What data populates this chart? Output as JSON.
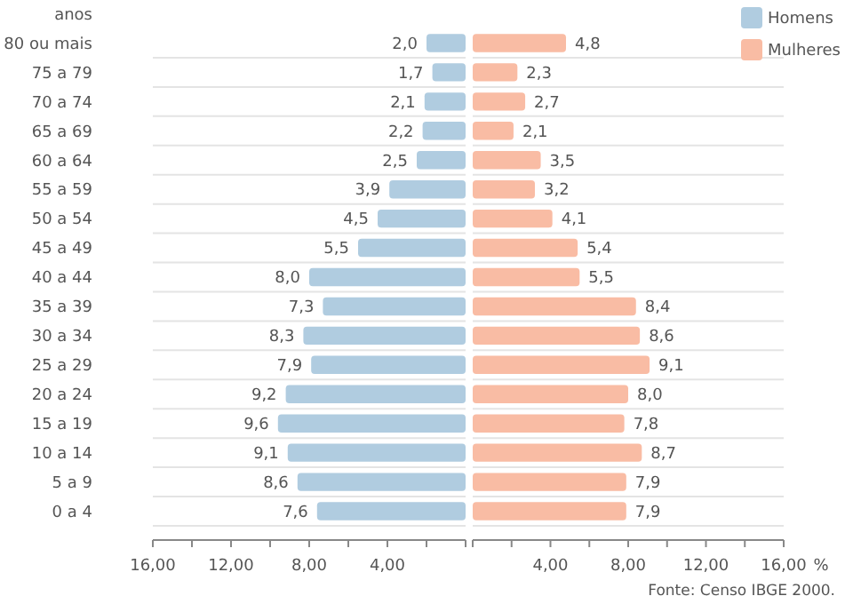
{
  "chart_data": [
    {
      "type": "bar",
      "orientation": "horizontal",
      "ylabel": "anos",
      "categories": [
        "80 ou mais",
        "75 a 79",
        "70 a 74",
        "65 a 69",
        "60 a 64",
        "55 a 59",
        "50 a 54",
        "45 a 49",
        "40 a 44",
        "35 a 39",
        "30 a 34",
        "25 a 29",
        "20 a 24",
        "15 a 19",
        "10 a 14",
        "5 a 9",
        "0 a 4"
      ],
      "series": [
        {
          "name": "Homens",
          "color": "#b0cce0",
          "values": [
            2.0,
            1.7,
            2.1,
            2.2,
            2.5,
            3.9,
            4.5,
            5.5,
            8.0,
            7.3,
            8.3,
            7.9,
            9.2,
            9.6,
            9.1,
            8.6,
            7.6
          ],
          "value_labels": [
            "2,0",
            "1,7",
            "2,1",
            "2,2",
            "2,5",
            "3,9",
            "4,5",
            "5,5",
            "8,0",
            "7,3",
            "8,3",
            "7,9",
            "9,2",
            "9,6",
            "9,1",
            "8,6",
            "7,6"
          ]
        }
      ],
      "xlim": [
        16,
        0
      ],
      "xticks": [
        {
          "value": 16,
          "label": "16,00"
        },
        {
          "value": 14,
          "label": null
        },
        {
          "value": 12,
          "label": "12,00"
        },
        {
          "value": 10,
          "label": null
        },
        {
          "value": 8,
          "label": "8,00"
        },
        {
          "value": 6,
          "label": null
        },
        {
          "value": 4,
          "label": "4,00"
        },
        {
          "value": 2,
          "label": null
        },
        {
          "value": 0,
          "label": null
        }
      ],
      "grid": "y",
      "legend": "top right"
    },
    {
      "type": "bar",
      "orientation": "horizontal",
      "xlabel": "%",
      "categories": [
        "80 ou mais",
        "75 a 79",
        "70 a 74",
        "65 a 69",
        "60 a 64",
        "55 a 59",
        "50 a 54",
        "45 a 49",
        "40 a 44",
        "35 a 39",
        "30 a 34",
        "25 a 29",
        "20 a 24",
        "15 a 19",
        "10 a 14",
        "5 a 9",
        "0 a 4"
      ],
      "series": [
        {
          "name": "Mulheres",
          "color": "#f9bca4",
          "values": [
            4.8,
            2.3,
            2.7,
            2.1,
            3.5,
            3.2,
            4.1,
            5.4,
            5.5,
            8.4,
            8.6,
            9.1,
            8.0,
            7.8,
            8.7,
            7.9,
            7.9
          ],
          "value_labels": [
            "4,8",
            "2,3",
            "2,7",
            "2,1",
            "3,5",
            "3,2",
            "4,1",
            "5,4",
            "5,5",
            "8,4",
            "8,6",
            "9,1",
            "8,0",
            "7,8",
            "8,7",
            "7,9",
            "7,9"
          ]
        }
      ],
      "xlim": [
        0,
        16
      ],
      "xticks": [
        {
          "value": 0,
          "label": null
        },
        {
          "value": 2,
          "label": null
        },
        {
          "value": 4,
          "label": "4,00"
        },
        {
          "value": 6,
          "label": null
        },
        {
          "value": 8,
          "label": "8,00"
        },
        {
          "value": 10,
          "label": null
        },
        {
          "value": 12,
          "label": "12,00"
        },
        {
          "value": 14,
          "label": null
        },
        {
          "value": 16,
          "label": "16,00"
        }
      ],
      "grid": "y",
      "legend": "top right",
      "tick_labels": "x",
      "annotations": [
        "Fonte: Censo IBGE 2000."
      ]
    }
  ]
}
